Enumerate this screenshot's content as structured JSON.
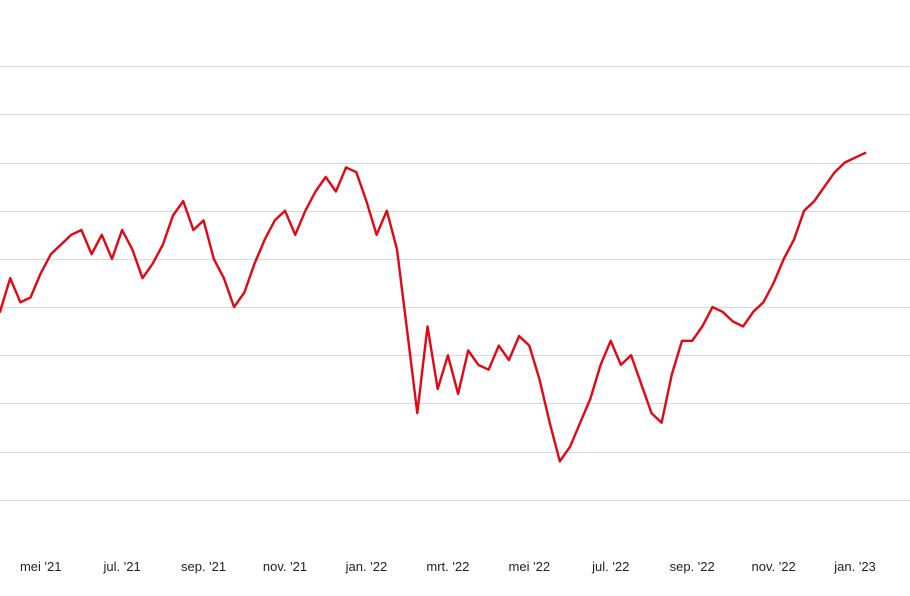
{
  "chart_data": {
    "type": "line",
    "title": "",
    "xlabel": "",
    "ylabel": "",
    "grid": true,
    "legend": "none",
    "color": "#e30613",
    "xlim": [
      0,
      22.35
    ],
    "ylim": [
      -1,
      10
    ],
    "x_tick_positions": [
      1,
      3,
      5,
      7,
      9,
      11,
      13,
      15,
      17,
      19,
      21
    ],
    "x_tick_labels": [
      "mei '21",
      "jul. '21",
      "sep. '21",
      "nov. '21",
      "jan. '22",
      "mrt. '22",
      "mei '22",
      "jul. '22",
      "sep. '22",
      "nov. '22",
      "jan. '23"
    ],
    "y_grid_values": [
      0,
      1,
      2,
      3,
      4,
      5,
      6,
      7,
      8,
      9
    ],
    "series": [
      {
        "x": [
          0.0,
          0.25,
          0.5,
          0.75,
          1.0,
          1.25,
          1.5,
          1.75,
          2.0,
          2.25,
          2.5,
          2.75,
          3.0,
          3.25,
          3.5,
          3.75,
          4.0,
          4.25,
          4.5,
          4.75,
          5.0,
          5.25,
          5.5,
          5.75,
          6.0,
          6.25,
          6.5,
          6.75,
          7.0,
          7.25,
          7.5,
          7.75,
          8.0,
          8.25,
          8.5,
          8.75,
          9.0,
          9.25,
          9.5,
          9.75,
          10.0,
          10.25,
          10.5,
          10.75,
          11.0,
          11.25,
          11.5,
          11.75,
          12.0,
          12.25,
          12.5,
          12.75,
          13.0,
          13.25,
          13.5,
          13.75,
          14.0,
          14.25,
          14.5,
          14.75,
          15.0,
          15.25,
          15.5,
          15.75,
          16.0,
          16.25,
          16.5,
          16.75,
          17.0,
          17.25,
          17.5,
          17.75,
          18.0,
          18.25,
          18.5,
          18.75,
          19.0,
          19.25,
          19.5,
          19.75,
          20.0,
          20.25,
          20.5,
          20.75,
          21.0,
          21.25
        ],
        "y": [
          3.9,
          4.6,
          4.1,
          4.2,
          4.7,
          5.1,
          5.3,
          5.5,
          5.6,
          5.1,
          5.5,
          5.0,
          5.6,
          5.2,
          4.6,
          4.9,
          5.3,
          5.9,
          6.2,
          5.6,
          5.8,
          5.0,
          4.6,
          4.0,
          4.3,
          4.9,
          5.4,
          5.8,
          6.0,
          5.5,
          6.0,
          6.4,
          6.7,
          6.4,
          6.9,
          6.8,
          6.2,
          5.5,
          6.0,
          5.2,
          3.5,
          1.8,
          3.6,
          2.3,
          3.0,
          2.2,
          3.1,
          2.8,
          2.7,
          3.2,
          2.9,
          3.4,
          3.2,
          2.5,
          1.6,
          0.8,
          1.1,
          1.6,
          2.1,
          2.8,
          3.3,
          2.8,
          3.0,
          2.4,
          1.8,
          1.6,
          2.6,
          3.3,
          3.3,
          3.6,
          4.0,
          3.9,
          3.7,
          3.6,
          3.9,
          4.1,
          4.5,
          5.0,
          5.4,
          6.0,
          6.2,
          6.5,
          6.8,
          7.0,
          7.1,
          7.2
        ]
      }
    ]
  }
}
